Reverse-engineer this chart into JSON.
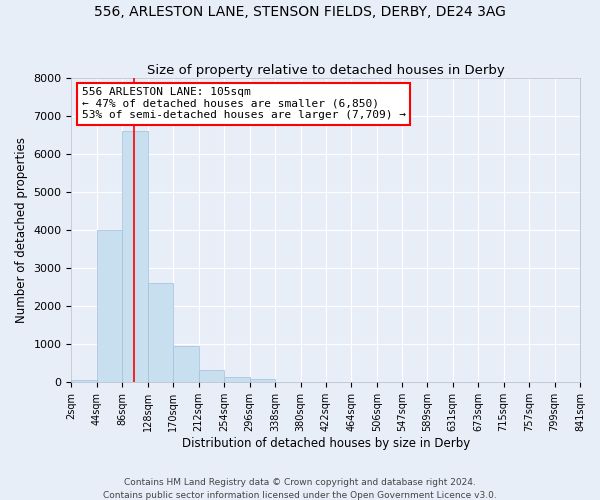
{
  "title": "556, ARLESTON LANE, STENSON FIELDS, DERBY, DE24 3AG",
  "subtitle": "Size of property relative to detached houses in Derby",
  "xlabel": "Distribution of detached houses by size in Derby",
  "ylabel": "Number of detached properties",
  "bin_edges": [
    2,
    44,
    86,
    128,
    170,
    212,
    254,
    296,
    338,
    380,
    422,
    464,
    506,
    547,
    589,
    631,
    673,
    715,
    757,
    799,
    841
  ],
  "bar_heights": [
    60,
    4000,
    6600,
    2600,
    950,
    330,
    130,
    80,
    0,
    0,
    0,
    0,
    0,
    0,
    0,
    0,
    0,
    0,
    0,
    0
  ],
  "bar_color": "#c8dff0",
  "bar_edge_color": "#a0c0dc",
  "vline_x": 105,
  "vline_color": "red",
  "annotation_title": "556 ARLESTON LANE: 105sqm",
  "annotation_line1": "← 47% of detached houses are smaller (6,850)",
  "annotation_line2": "53% of semi-detached houses are larger (7,709) →",
  "annotation_box_color": "white",
  "annotation_box_edge": "red",
  "ylim": [
    0,
    8000
  ],
  "yticks": [
    0,
    1000,
    2000,
    3000,
    4000,
    5000,
    6000,
    7000,
    8000
  ],
  "tick_labels": [
    "2sqm",
    "44sqm",
    "86sqm",
    "128sqm",
    "170sqm",
    "212sqm",
    "254sqm",
    "296sqm",
    "338sqm",
    "380sqm",
    "422sqm",
    "464sqm",
    "506sqm",
    "547sqm",
    "589sqm",
    "631sqm",
    "673sqm",
    "715sqm",
    "757sqm",
    "799sqm",
    "841sqm"
  ],
  "footer1": "Contains HM Land Registry data © Crown copyright and database right 2024.",
  "footer2": "Contains public sector information licensed under the Open Government Licence v3.0.",
  "background_color": "#e8eef8",
  "plot_bg_color": "#e8eef8",
  "grid_color": "white",
  "title_fontsize": 10,
  "subtitle_fontsize": 9.5,
  "axis_label_fontsize": 8.5,
  "tick_fontsize": 7,
  "footer_fontsize": 6.5,
  "annotation_fontsize": 8
}
